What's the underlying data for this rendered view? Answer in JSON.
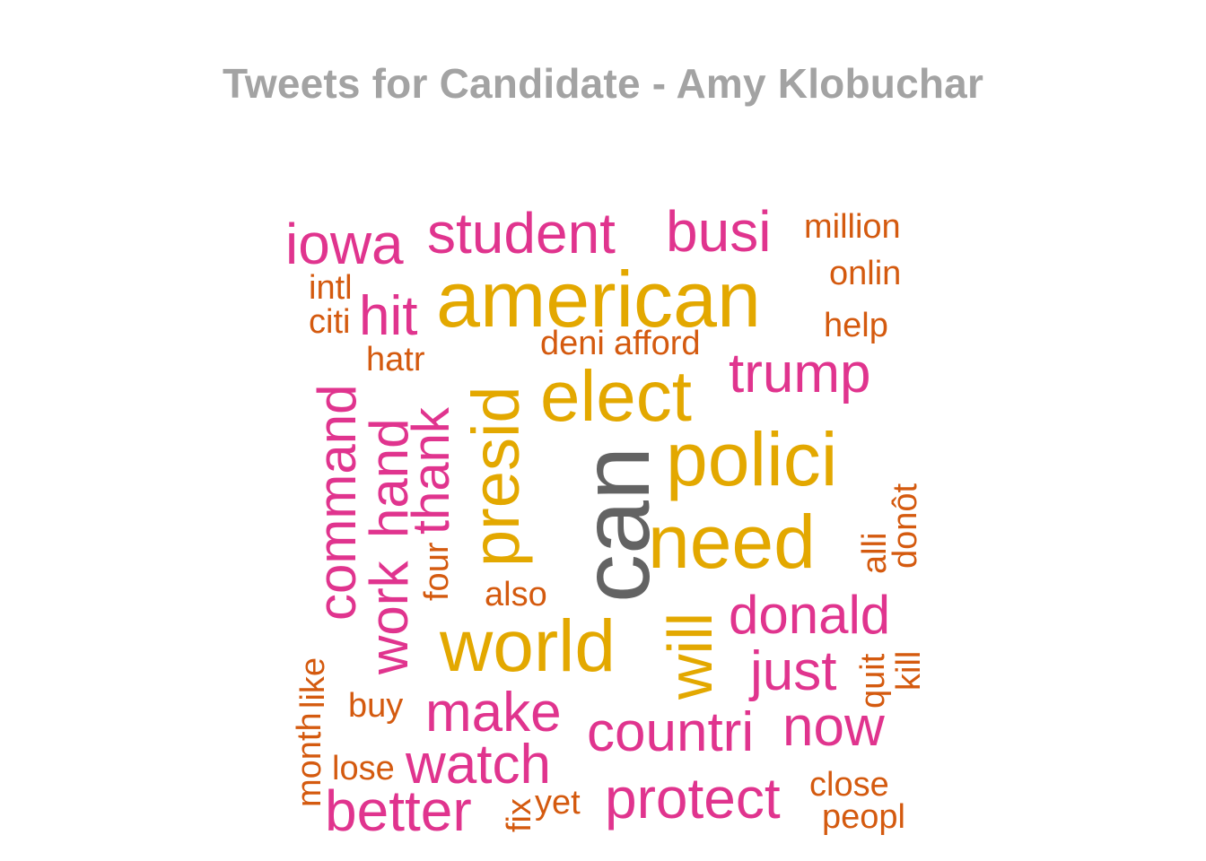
{
  "title": "Tweets for Candidate - Amy Klobuchar",
  "colors": {
    "title": "#a3a3a3",
    "tier_top": "#636363",
    "tier_high": "#e3a800",
    "tier_mid": "#e0348e",
    "tier_low": "#d45a0f"
  },
  "words": [
    {
      "text": "can",
      "tier": "top"
    },
    {
      "text": "american",
      "tier": "high"
    },
    {
      "text": "elect",
      "tier": "high"
    },
    {
      "text": "polici",
      "tier": "high"
    },
    {
      "text": "need",
      "tier": "high"
    },
    {
      "text": "world",
      "tier": "high"
    },
    {
      "text": "presid",
      "tier": "high"
    },
    {
      "text": "will",
      "tier": "high"
    },
    {
      "text": "iowa",
      "tier": "mid"
    },
    {
      "text": "student",
      "tier": "mid"
    },
    {
      "text": "busi",
      "tier": "mid"
    },
    {
      "text": "hit",
      "tier": "mid"
    },
    {
      "text": "trump",
      "tier": "mid"
    },
    {
      "text": "command",
      "tier": "mid"
    },
    {
      "text": "work",
      "tier": "mid"
    },
    {
      "text": "hand",
      "tier": "mid"
    },
    {
      "text": "thank",
      "tier": "mid"
    },
    {
      "text": "donald",
      "tier": "mid"
    },
    {
      "text": "just",
      "tier": "mid"
    },
    {
      "text": "make",
      "tier": "mid"
    },
    {
      "text": "countri",
      "tier": "mid"
    },
    {
      "text": "now",
      "tier": "mid"
    },
    {
      "text": "watch",
      "tier": "mid"
    },
    {
      "text": "better",
      "tier": "mid"
    },
    {
      "text": "protect",
      "tier": "mid"
    },
    {
      "text": "million",
      "tier": "low"
    },
    {
      "text": "onlin",
      "tier": "low"
    },
    {
      "text": "help",
      "tier": "low"
    },
    {
      "text": "intl",
      "tier": "low"
    },
    {
      "text": "citi",
      "tier": "low"
    },
    {
      "text": "deni",
      "tier": "low"
    },
    {
      "text": "afford",
      "tier": "low"
    },
    {
      "text": "hatr",
      "tier": "low"
    },
    {
      "text": "four",
      "tier": "low"
    },
    {
      "text": "also",
      "tier": "low"
    },
    {
      "text": "alli",
      "tier": "low"
    },
    {
      "text": "donôt",
      "tier": "low"
    },
    {
      "text": "quit",
      "tier": "low"
    },
    {
      "text": "kill",
      "tier": "low"
    },
    {
      "text": "like",
      "tier": "low"
    },
    {
      "text": "month",
      "tier": "low"
    },
    {
      "text": "buy",
      "tier": "low"
    },
    {
      "text": "lose",
      "tier": "low"
    },
    {
      "text": "fix",
      "tier": "low"
    },
    {
      "text": "yet",
      "tier": "low"
    },
    {
      "text": "close",
      "tier": "low"
    },
    {
      "text": "peopl",
      "tier": "low"
    }
  ]
}
